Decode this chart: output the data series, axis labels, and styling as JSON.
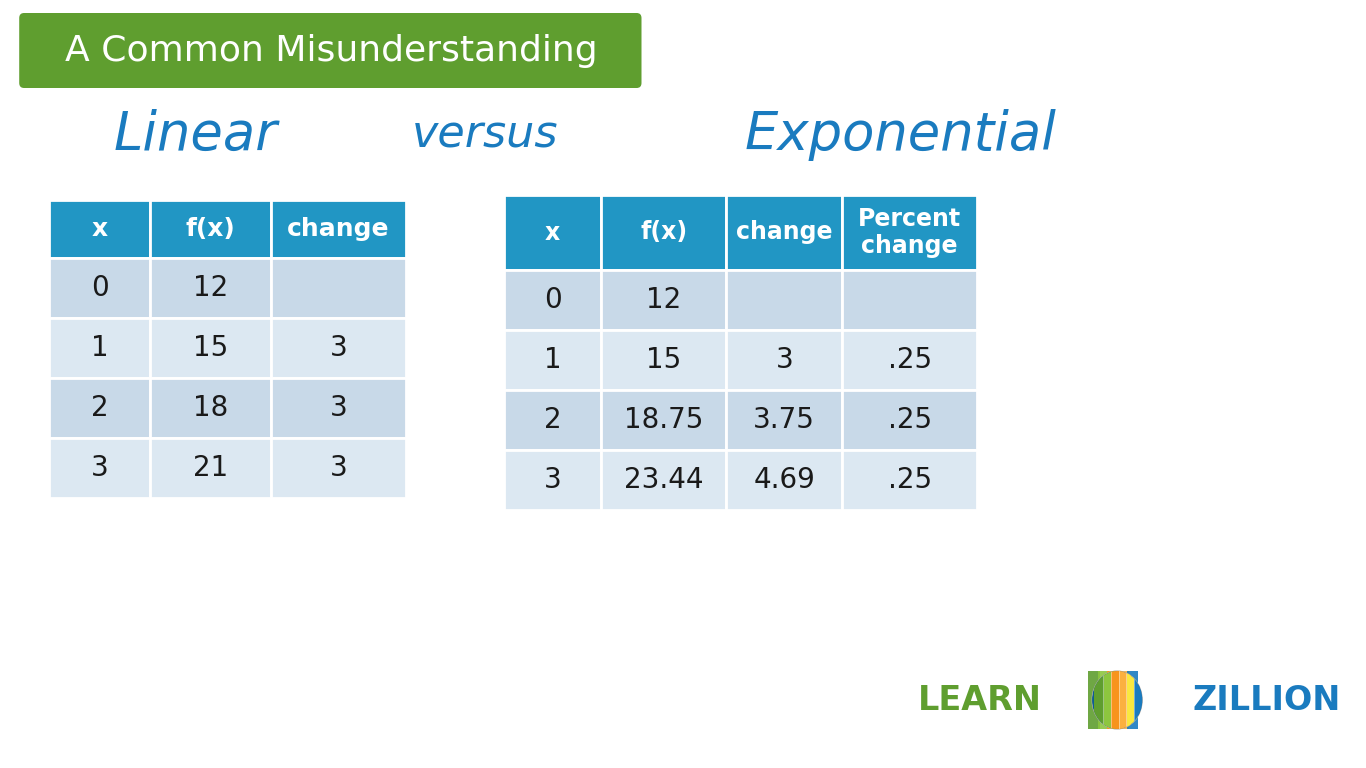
{
  "background_color": "#ffffff",
  "title_banner_color": "#5f9e2f",
  "title_text": "A Common Misunderstanding",
  "title_text_color": "#ffffff",
  "title_fontsize": 26,
  "subtitle_linear": "Linear",
  "subtitle_versus": "versus",
  "subtitle_exponential": "Exponential",
  "subtitle_color": "#1a7bbf",
  "subtitle_fontsize": 38,
  "header_bg_color": "#2196c4",
  "header_text_color": "#ffffff",
  "row_color_1": "#c8d9e8",
  "row_color_2": "#dce8f2",
  "table_text_color": "#1a1a1a",
  "linear_table": {
    "headers": [
      "x",
      "f(x)",
      "change"
    ],
    "rows": [
      [
        "0",
        "12",
        ""
      ],
      [
        "1",
        "15",
        "3"
      ],
      [
        "2",
        "18",
        "3"
      ],
      [
        "3",
        "21",
        "3"
      ]
    ]
  },
  "exponential_table": {
    "headers": [
      "x",
      "f(x)",
      "change",
      "Percent\nchange"
    ],
    "rows": [
      [
        "0",
        "12",
        "",
        ""
      ],
      [
        "1",
        "15",
        "3",
        ".25"
      ],
      [
        "2",
        "18.75",
        "3.75",
        ".25"
      ],
      [
        "3",
        "23.44",
        "4.69",
        ".25"
      ]
    ]
  },
  "learnzillion_color_learn": "#5f9e2f",
  "learnzillion_color_zillion": "#1a7bbf",
  "globe_colors": [
    "#5f9e2f",
    "#8dc63f",
    "#f7941d",
    "#fbb040",
    "#1a7bbf",
    "#006699"
  ]
}
